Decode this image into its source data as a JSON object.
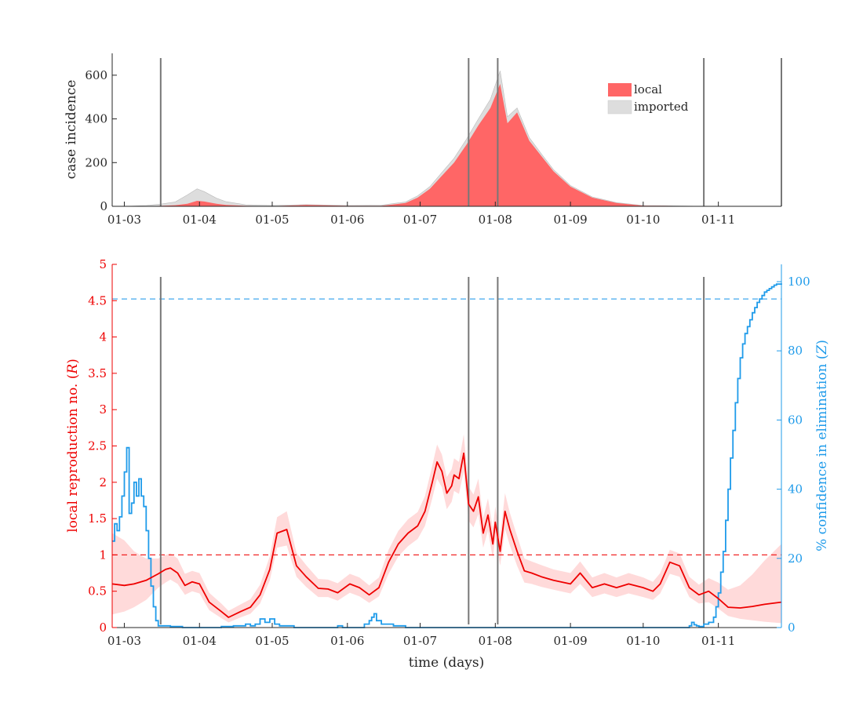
{
  "colors": {
    "local": "#ff6666",
    "imported": "#dddddd",
    "r_line": "#ee0000",
    "r_band": "#ffdada",
    "z_line": "#1f9bea",
    "vline": "#777777",
    "axis": "#262626"
  },
  "chart_data": [
    {
      "type": "area",
      "stacked": true,
      "xlabel": "",
      "ylabel": "case incidence",
      "xlim": [
        "2020-02-25",
        "2020-11-27"
      ],
      "ylim": [
        0,
        700
      ],
      "yticks": [
        0,
        200,
        400,
        600
      ],
      "xtick_labels": [
        "01-03",
        "01-04",
        "01-05",
        "01-06",
        "01-07",
        "01-08",
        "01-09",
        "01-10",
        "01-11"
      ],
      "legend": {
        "placement": "top-right",
        "entries": [
          "local",
          "imported"
        ]
      },
      "vertical_lines": [
        "2020-03-16",
        "2020-07-21",
        "2020-08-02",
        "2020-10-26",
        "2020-11-27"
      ],
      "x": [
        "2020-03-01",
        "2020-03-10",
        "2020-03-16",
        "2020-03-22",
        "2020-03-27",
        "2020-03-31",
        "2020-04-03",
        "2020-04-08",
        "2020-04-12",
        "2020-04-20",
        "2020-05-01",
        "2020-05-15",
        "2020-06-01",
        "2020-06-15",
        "2020-06-25",
        "2020-06-30",
        "2020-07-05",
        "2020-07-10",
        "2020-07-15",
        "2020-07-20",
        "2020-07-25",
        "2020-07-30",
        "2020-08-03",
        "2020-08-06",
        "2020-08-10",
        "2020-08-15",
        "2020-08-20",
        "2020-08-25",
        "2020-09-01",
        "2020-09-10",
        "2020-09-20",
        "2020-10-01",
        "2020-10-10",
        "2020-10-20",
        "2020-10-26",
        "2020-11-27"
      ],
      "series": [
        {
          "name": "local",
          "values": [
            0,
            1,
            2,
            5,
            12,
            25,
            22,
            12,
            6,
            2,
            1,
            6,
            2,
            2,
            15,
            40,
            80,
            140,
            200,
            280,
            370,
            450,
            560,
            380,
            430,
            300,
            230,
            160,
            90,
            40,
            15,
            3,
            2,
            1,
            0,
            0
          ]
        },
        {
          "name": "imported",
          "values": [
            0,
            3,
            8,
            15,
            40,
            55,
            45,
            25,
            15,
            5,
            3,
            2,
            2,
            3,
            5,
            8,
            10,
            15,
            20,
            25,
            30,
            40,
            60,
            30,
            20,
            15,
            10,
            8,
            5,
            3,
            2,
            1,
            1,
            0,
            0,
            0
          ]
        }
      ]
    },
    {
      "type": "line",
      "xlabel": "time (days)",
      "ylabel": "local reproduction no. (R)",
      "ylabel_parts": [
        "local reproduction no. (",
        "R",
        ")"
      ],
      "y2label": "% confidence in elimination (Z)",
      "y2label_parts": [
        "% confidence in elimination (",
        "Z",
        ")"
      ],
      "xlim": [
        "2020-02-25",
        "2020-11-27"
      ],
      "ylim": [
        0,
        5
      ],
      "yticks": [
        0,
        0.5,
        1,
        1.5,
        2,
        2.5,
        3,
        3.5,
        4,
        4.5,
        5
      ],
      "ytick_labels": [
        "0",
        "0.5",
        "1",
        "1.5",
        "2",
        "2.5",
        "3",
        "3.5",
        "4",
        "4.5",
        "5"
      ],
      "y2lim": [
        0,
        105
      ],
      "y2ticks": [
        0,
        20,
        40,
        60,
        80,
        100
      ],
      "xtick_labels": [
        "01-03",
        "01-04",
        "01-05",
        "01-06",
        "01-07",
        "01-08",
        "01-09",
        "01-10",
        "01-11"
      ],
      "reference_lines": [
        {
          "axis": "left",
          "y": 1,
          "style": "dashed"
        },
        {
          "axis": "right",
          "y": 95,
          "style": "dashed"
        }
      ],
      "vertical_lines": [
        "2020-03-16",
        "2020-07-21",
        "2020-08-02",
        "2020-10-26"
      ],
      "series": [
        {
          "axis": "left",
          "x": [
            "2020-02-25",
            "2020-03-01",
            "2020-03-05",
            "2020-03-10",
            "2020-03-15",
            "2020-03-18",
            "2020-03-20",
            "2020-03-23",
            "2020-03-26",
            "2020-03-29",
            "2020-04-01",
            "2020-04-05",
            "2020-04-10",
            "2020-04-13",
            "2020-04-18",
            "2020-04-22",
            "2020-04-26",
            "2020-04-30",
            "2020-05-03",
            "2020-05-07",
            "2020-05-11",
            "2020-05-15",
            "2020-05-20",
            "2020-05-24",
            "2020-05-28",
            "2020-06-02",
            "2020-06-06",
            "2020-06-10",
            "2020-06-14",
            "2020-06-18",
            "2020-06-22",
            "2020-06-26",
            "2020-06-30",
            "2020-07-03",
            "2020-07-06",
            "2020-07-08",
            "2020-07-10",
            "2020-07-12",
            "2020-07-14",
            "2020-07-15",
            "2020-07-17",
            "2020-07-19",
            "2020-07-21",
            "2020-07-23",
            "2020-07-25",
            "2020-07-27",
            "2020-07-29",
            "2020-07-31",
            "2020-08-01",
            "2020-08-03",
            "2020-08-05",
            "2020-08-07",
            "2020-08-10",
            "2020-08-13",
            "2020-08-16",
            "2020-08-20",
            "2020-08-25",
            "2020-09-01",
            "2020-09-05",
            "2020-09-10",
            "2020-09-15",
            "2020-09-20",
            "2020-09-25",
            "2020-10-01",
            "2020-10-05",
            "2020-10-08",
            "2020-10-12",
            "2020-10-16",
            "2020-10-20",
            "2020-10-24",
            "2020-10-28",
            "2020-11-01",
            "2020-11-05",
            "2020-11-10",
            "2020-11-15",
            "2020-11-20",
            "2020-11-27"
          ],
          "values": [
            0.6,
            0.58,
            0.6,
            0.65,
            0.74,
            0.8,
            0.82,
            0.75,
            0.58,
            0.63,
            0.6,
            0.35,
            0.22,
            0.14,
            0.22,
            0.28,
            0.45,
            0.8,
            1.3,
            1.35,
            0.85,
            0.7,
            0.54,
            0.53,
            0.48,
            0.6,
            0.55,
            0.45,
            0.55,
            0.9,
            1.15,
            1.3,
            1.4,
            1.6,
            2.0,
            2.28,
            2.15,
            1.85,
            1.95,
            2.1,
            2.05,
            2.4,
            1.7,
            1.6,
            1.8,
            1.3,
            1.55,
            1.15,
            1.45,
            1.05,
            1.6,
            1.35,
            1.05,
            0.78,
            0.75,
            0.7,
            0.65,
            0.6,
            0.75,
            0.55,
            0.6,
            0.55,
            0.6,
            0.55,
            0.5,
            0.6,
            0.9,
            0.85,
            0.55,
            0.45,
            0.5,
            0.4,
            0.28,
            0.27,
            0.29,
            0.32,
            0.35
          ]
        },
        {
          "axis": "left",
          "role": "band",
          "x": [
            "2020-02-25",
            "2020-03-01",
            "2020-03-05",
            "2020-03-10",
            "2020-03-15",
            "2020-03-18",
            "2020-03-20",
            "2020-03-23",
            "2020-03-26",
            "2020-03-29",
            "2020-04-01",
            "2020-04-05",
            "2020-04-10",
            "2020-04-13",
            "2020-04-18",
            "2020-04-22",
            "2020-04-26",
            "2020-04-30",
            "2020-05-03",
            "2020-05-07",
            "2020-05-11",
            "2020-05-15",
            "2020-05-20",
            "2020-05-24",
            "2020-05-28",
            "2020-06-02",
            "2020-06-06",
            "2020-06-10",
            "2020-06-14",
            "2020-06-18",
            "2020-06-22",
            "2020-06-26",
            "2020-06-30",
            "2020-07-03",
            "2020-07-06",
            "2020-07-08",
            "2020-07-10",
            "2020-07-12",
            "2020-07-14",
            "2020-07-15",
            "2020-07-17",
            "2020-07-19",
            "2020-07-21",
            "2020-07-23",
            "2020-07-25",
            "2020-07-27",
            "2020-07-29",
            "2020-07-31",
            "2020-08-01",
            "2020-08-03",
            "2020-08-05",
            "2020-08-07",
            "2020-08-10",
            "2020-08-13",
            "2020-08-16",
            "2020-08-20",
            "2020-08-25",
            "2020-09-01",
            "2020-09-05",
            "2020-09-10",
            "2020-09-15",
            "2020-09-20",
            "2020-09-25",
            "2020-10-01",
            "2020-10-05",
            "2020-10-08",
            "2020-10-12",
            "2020-10-16",
            "2020-10-20",
            "2020-10-24",
            "2020-10-28",
            "2020-11-01",
            "2020-11-05",
            "2020-11-10",
            "2020-11-15",
            "2020-11-20",
            "2020-11-27"
          ],
          "lower": [
            0.18,
            0.22,
            0.28,
            0.38,
            0.55,
            0.62,
            0.66,
            0.6,
            0.45,
            0.5,
            0.47,
            0.24,
            0.13,
            0.07,
            0.14,
            0.19,
            0.33,
            0.65,
            1.1,
            1.13,
            0.7,
            0.56,
            0.42,
            0.42,
            0.37,
            0.48,
            0.43,
            0.34,
            0.43,
            0.74,
            0.98,
            1.12,
            1.22,
            1.4,
            1.78,
            2.05,
            1.93,
            1.63,
            1.73,
            1.88,
            1.84,
            2.15,
            1.47,
            1.38,
            1.56,
            1.1,
            1.33,
            0.95,
            1.24,
            0.85,
            1.36,
            1.13,
            0.85,
            0.62,
            0.6,
            0.56,
            0.52,
            0.47,
            0.6,
            0.42,
            0.47,
            0.42,
            0.47,
            0.42,
            0.38,
            0.47,
            0.74,
            0.7,
            0.42,
            0.33,
            0.35,
            0.26,
            0.16,
            0.12,
            0.1,
            0.08,
            0.06
          ],
          "upper": [
            1.3,
            1.2,
            1.05,
            0.95,
            0.95,
            1.0,
            1.02,
            0.95,
            0.74,
            0.78,
            0.75,
            0.48,
            0.33,
            0.23,
            0.32,
            0.39,
            0.59,
            0.98,
            1.52,
            1.6,
            1.03,
            0.86,
            0.67,
            0.66,
            0.61,
            0.74,
            0.69,
            0.58,
            0.69,
            1.07,
            1.33,
            1.49,
            1.59,
            1.81,
            2.23,
            2.52,
            2.38,
            2.07,
            2.18,
            2.33,
            2.28,
            2.66,
            1.94,
            1.83,
            2.05,
            1.51,
            1.78,
            1.36,
            1.67,
            1.25,
            1.85,
            1.58,
            1.26,
            0.95,
            0.91,
            0.86,
            0.8,
            0.75,
            0.91,
            0.69,
            0.75,
            0.69,
            0.75,
            0.69,
            0.63,
            0.75,
            1.07,
            1.02,
            0.7,
            0.59,
            0.68,
            0.62,
            0.52,
            0.58,
            0.73,
            0.92,
            1.15
          ]
        },
        {
          "axis": "right",
          "style": "step",
          "x": [
            "2020-02-25",
            "2020-02-26",
            "2020-02-27",
            "2020-02-28",
            "2020-02-29",
            "2020-03-01",
            "2020-03-02",
            "2020-03-03",
            "2020-03-04",
            "2020-03-05",
            "2020-03-06",
            "2020-03-07",
            "2020-03-08",
            "2020-03-09",
            "2020-03-10",
            "2020-03-11",
            "2020-03-12",
            "2020-03-13",
            "2020-03-14",
            "2020-03-15",
            "2020-03-17",
            "2020-03-20",
            "2020-03-25",
            "2020-04-05",
            "2020-04-10",
            "2020-04-15",
            "2020-04-20",
            "2020-04-22",
            "2020-04-24",
            "2020-04-26",
            "2020-04-28",
            "2020-04-30",
            "2020-05-02",
            "2020-05-04",
            "2020-05-10",
            "2020-05-20",
            "2020-05-28",
            "2020-05-30",
            "2020-06-05",
            "2020-06-08",
            "2020-06-10",
            "2020-06-11",
            "2020-06-12",
            "2020-06-13",
            "2020-06-15",
            "2020-06-20",
            "2020-06-25",
            "2020-07-01",
            "2020-08-01",
            "2020-09-01",
            "2020-10-01",
            "2020-10-15",
            "2020-10-20",
            "2020-10-21",
            "2020-10-22",
            "2020-10-23",
            "2020-10-24",
            "2020-10-26",
            "2020-10-28",
            "2020-10-30",
            "2020-10-31",
            "2020-11-01",
            "2020-11-02",
            "2020-11-03",
            "2020-11-04",
            "2020-11-05",
            "2020-11-06",
            "2020-11-07",
            "2020-11-08",
            "2020-11-09",
            "2020-11-10",
            "2020-11-11",
            "2020-11-12",
            "2020-11-13",
            "2020-11-14",
            "2020-11-15",
            "2020-11-16",
            "2020-11-17",
            "2020-11-18",
            "2020-11-19",
            "2020-11-20",
            "2020-11-21",
            "2020-11-22",
            "2020-11-23",
            "2020-11-24",
            "2020-11-25",
            "2020-11-27"
          ],
          "values": [
            25,
            30,
            28,
            32,
            38,
            45,
            52,
            33,
            36,
            42,
            38,
            43,
            38,
            35,
            28,
            20,
            12,
            6,
            2,
            0.5,
            0.5,
            0.3,
            0,
            0,
            0.3,
            0.5,
            1,
            0.5,
            1,
            2.5,
            1.5,
            2.5,
            1,
            0.5,
            0,
            0,
            0.5,
            0,
            0,
            1,
            2,
            3,
            4,
            2,
            1,
            0.5,
            0,
            0,
            0,
            0,
            0,
            0,
            0.5,
            1.5,
            0.8,
            0.5,
            0.3,
            1,
            1.5,
            3,
            6,
            10,
            16,
            22,
            31,
            40,
            49,
            57,
            65,
            72,
            78,
            82,
            85,
            87,
            89,
            91,
            92.5,
            94,
            95,
            96,
            97,
            97.5,
            98,
            98.5,
            99,
            99.3,
            99.5
          ]
        }
      ]
    }
  ]
}
